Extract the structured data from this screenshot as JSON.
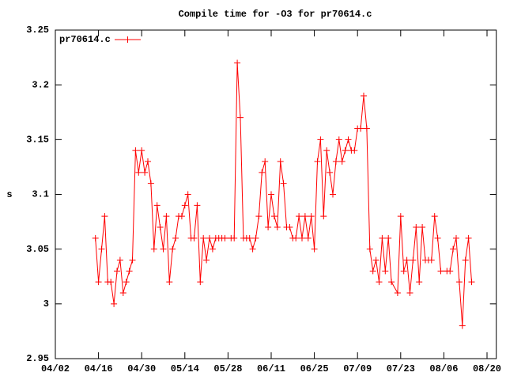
{
  "chart_data": {
    "type": "line",
    "title": "Compile time for -O3 for pr70614.c",
    "y_label": "s",
    "x": [
      "04/15",
      "04/16",
      "04/17",
      "04/18",
      "04/19",
      "04/20",
      "04/21",
      "04/22",
      "04/23",
      "04/24",
      "04/25",
      "04/26",
      "04/27",
      "04/28",
      "04/29",
      "04/30",
      "05/01",
      "05/02",
      "05/03",
      "05/04",
      "05/05",
      "05/06",
      "05/07",
      "05/08",
      "05/09",
      "05/10",
      "05/11",
      "05/12",
      "05/13",
      "05/14",
      "05/15",
      "05/16",
      "05/17",
      "05/18",
      "05/19",
      "05/20",
      "05/21",
      "05/22",
      "05/23",
      "05/24",
      "05/25",
      "05/26",
      "05/27",
      "05/29",
      "05/30",
      "05/31",
      "06/01",
      "06/02",
      "06/03",
      "06/04",
      "06/05",
      "06/06",
      "06/07",
      "06/08",
      "06/09",
      "06/10",
      "06/11",
      "06/12",
      "06/13",
      "06/14",
      "06/15",
      "06/16",
      "06/17",
      "06/18",
      "06/19",
      "06/20",
      "06/21",
      "06/22",
      "06/23",
      "06/24",
      "06/25",
      "06/26",
      "06/27",
      "06/28",
      "06/29",
      "06/30",
      "07/01",
      "07/02",
      "07/03",
      "07/04",
      "07/05",
      "07/06",
      "07/07",
      "07/08",
      "07/09",
      "07/10",
      "07/11",
      "07/12",
      "07/13",
      "07/14",
      "07/15",
      "07/16",
      "07/17",
      "07/18",
      "07/19",
      "07/20",
      "07/22",
      "07/23",
      "07/24",
      "07/25",
      "07/26",
      "07/27",
      "07/28",
      "07/29",
      "07/30",
      "07/31",
      "08/01",
      "08/02",
      "08/03",
      "08/04",
      "08/05",
      "08/07",
      "08/08",
      "08/09",
      "08/10",
      "08/11",
      "08/12",
      "08/13",
      "08/14",
      "08/15"
    ],
    "series": [
      {
        "name": "pr70614.c",
        "color": "#ff0000",
        "values": [
          3.06,
          3.02,
          3.05,
          3.08,
          3.02,
          3.02,
          3.0,
          3.03,
          3.04,
          3.01,
          3.02,
          3.03,
          3.04,
          3.14,
          3.12,
          3.14,
          3.12,
          3.13,
          3.11,
          3.05,
          3.09,
          3.07,
          3.05,
          3.08,
          3.02,
          3.05,
          3.06,
          3.08,
          3.08,
          3.09,
          3.1,
          3.06,
          3.06,
          3.09,
          3.02,
          3.06,
          3.04,
          3.06,
          3.05,
          3.06,
          3.06,
          3.06,
          3.06,
          3.06,
          3.06,
          3.22,
          3.17,
          3.06,
          3.06,
          3.06,
          3.05,
          3.06,
          3.08,
          3.12,
          3.13,
          3.07,
          3.1,
          3.08,
          3.07,
          3.13,
          3.11,
          3.07,
          3.07,
          3.06,
          3.06,
          3.08,
          3.06,
          3.08,
          3.06,
          3.08,
          3.05,
          3.13,
          3.15,
          3.08,
          3.14,
          3.12,
          3.1,
          3.13,
          3.15,
          3.13,
          3.14,
          3.15,
          3.14,
          3.14,
          3.16,
          3.16,
          3.19,
          3.16,
          3.05,
          3.03,
          3.04,
          3.02,
          3.06,
          3.03,
          3.06,
          3.02,
          3.01,
          3.08,
          3.03,
          3.04,
          3.01,
          3.04,
          3.07,
          3.02,
          3.07,
          3.04,
          3.04,
          3.04,
          3.08,
          3.06,
          3.03,
          3.03,
          3.03,
          3.05,
          3.06,
          3.02,
          2.98,
          3.04,
          3.06,
          3.02
        ]
      }
    ],
    "xlim": [
      "04/02",
      "08/23"
    ],
    "xticks": [
      "04/02",
      "04/16",
      "04/30",
      "05/14",
      "05/28",
      "06/11",
      "06/25",
      "07/09",
      "07/23",
      "08/06",
      "08/20"
    ],
    "ylim": [
      2.95,
      3.25
    ],
    "yticks": [
      2.95,
      3,
      3.05,
      3.1,
      3.15,
      3.2,
      3.25
    ],
    "legend": "top-left"
  }
}
